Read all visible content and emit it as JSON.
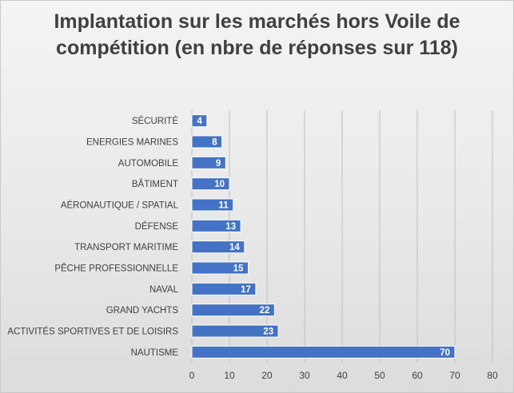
{
  "chart_data": {
    "type": "bar",
    "orientation": "horizontal",
    "title": "Implantation sur les marchés hors Voile de compétition (en nbre de réponses sur 118)",
    "categories": [
      "SÉCURITÉ",
      "ENERGIES MARINES",
      "AUTOMOBILE",
      "BÂTIMENT",
      "AÉRONAUTIQUE / SPATIAL",
      "DÉFENSE",
      "TRANSPORT MARITIME",
      "PÊCHE PROFESSIONNELLE",
      "NAVAL",
      "GRAND YACHTS",
      "ACTIVITÉS SPORTIVES ET DE LOISIRS",
      "NAUTISME"
    ],
    "values": [
      4,
      8,
      9,
      10,
      11,
      13,
      14,
      15,
      17,
      22,
      23,
      70
    ],
    "xlim": [
      0,
      80
    ],
    "xticks": [
      0,
      10,
      20,
      30,
      40,
      50,
      60,
      70,
      80
    ],
    "grid": "vertical",
    "data_labels": true,
    "legend": "none",
    "colors": {
      "bar_fill": "#4472c4",
      "bar_stroke": "#ffffff",
      "grid": "#bfbfbf",
      "text": "#404040",
      "label_text": "#ffffff"
    }
  }
}
